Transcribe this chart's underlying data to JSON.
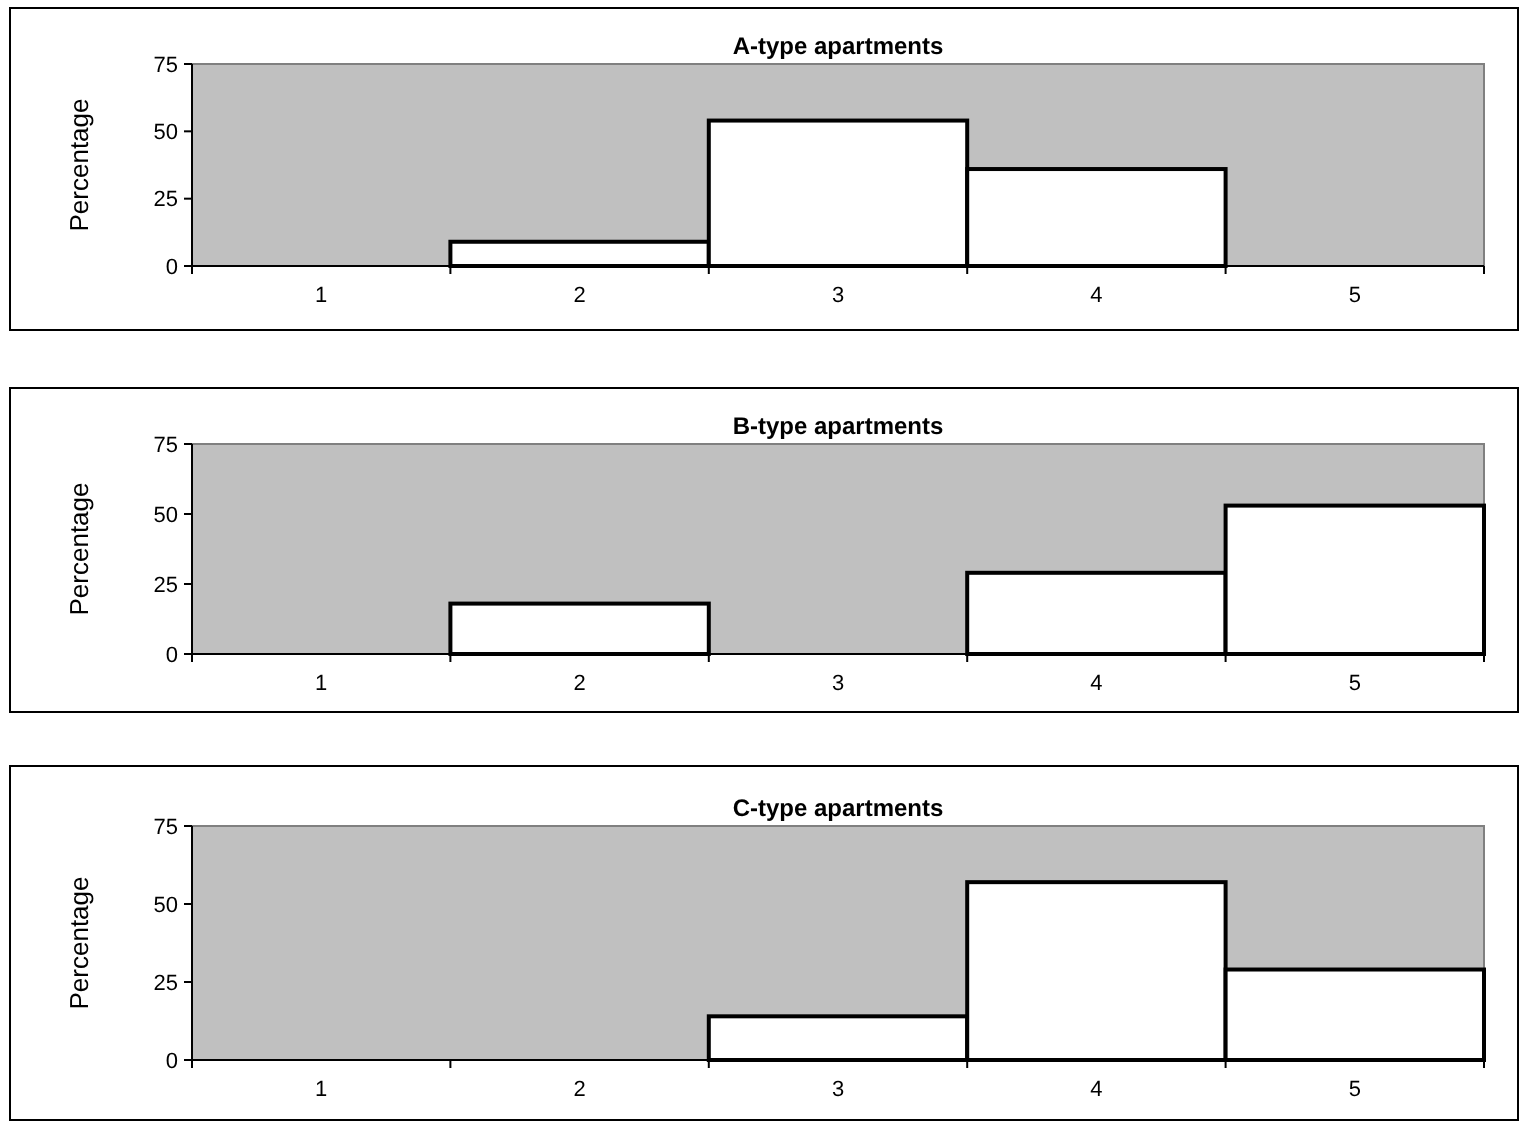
{
  "chart_data": [
    {
      "type": "bar",
      "title": "A-type apartments",
      "ylabel": "Percentage",
      "categories": [
        "1",
        "2",
        "3",
        "4",
        "5"
      ],
      "values": [
        0,
        9,
        54,
        36,
        0
      ],
      "color": "#ffffff",
      "ylim": [
        0,
        75
      ],
      "yticks": [
        0,
        25,
        50,
        75
      ]
    },
    {
      "type": "bar",
      "title": "B-type apartments",
      "ylabel": "Percentage",
      "categories": [
        "1",
        "2",
        "3",
        "4",
        "5"
      ],
      "values": [
        0,
        18,
        0,
        29,
        53
      ],
      "color": "#ffffff",
      "ylim": [
        0,
        75
      ],
      "yticks": [
        0,
        25,
        50,
        75
      ]
    },
    {
      "type": "bar",
      "title": "C-type apartments",
      "ylabel": "Percentage",
      "categories": [
        "1",
        "2",
        "3",
        "4",
        "5"
      ],
      "values": [
        0,
        0,
        14,
        57,
        29
      ],
      "color": "#ffffff",
      "ylim": [
        0,
        75
      ],
      "yticks": [
        0,
        25,
        50,
        75
      ]
    }
  ]
}
